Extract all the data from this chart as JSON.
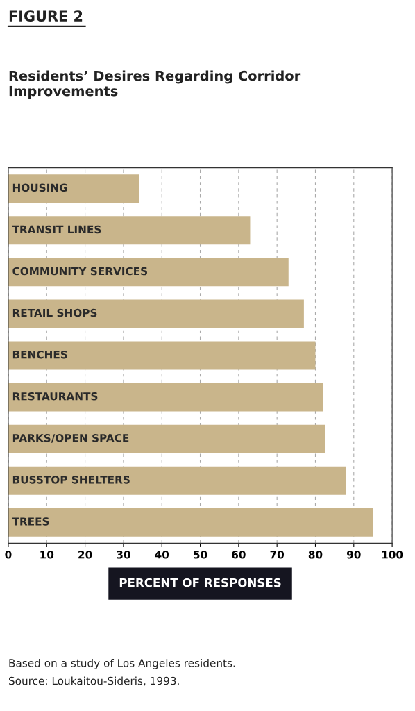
{
  "chart_data": {
    "type": "bar",
    "orientation": "horizontal",
    "title": "FIGURE 2",
    "subtitle": "Residents’ Desires Regarding Corridor Improvements",
    "categories": [
      "HOUSING",
      "TRANSIT LINES",
      "COMMUNITY SERVICES",
      "RETAIL SHOPS",
      "BENCHES",
      "RESTAURANTS",
      "PARKS/OPEN SPACE",
      "BUSSTOP SHELTERS",
      "TREES"
    ],
    "values": [
      34,
      63,
      73,
      77,
      80,
      82,
      82.5,
      88,
      95
    ],
    "color": "#c9b58b",
    "xlim": [
      0,
      100
    ],
    "xticks": [
      0,
      10,
      20,
      30,
      40,
      50,
      60,
      70,
      80,
      90,
      100
    ],
    "xlabel": "PERCENT OF RESPONSES",
    "grid": "x",
    "annotations": [
      "Based on a study of Los Angeles residents.",
      "Source: Loukaitou-Sideris, 1993."
    ]
  }
}
